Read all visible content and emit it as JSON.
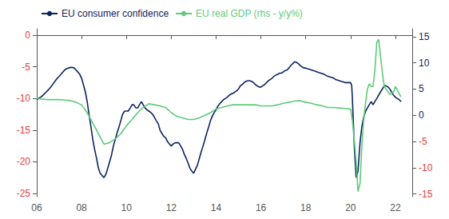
{
  "chart_data": {
    "type": "line",
    "xlim": [
      2006.0,
      2022.75
    ],
    "xticks": [
      {
        "value": 2006,
        "label": "06"
      },
      {
        "value": 2008,
        "label": "08"
      },
      {
        "value": 2010,
        "label": "10"
      },
      {
        "value": 2012,
        "label": "12"
      },
      {
        "value": 2014,
        "label": "14"
      },
      {
        "value": 2016,
        "label": "16"
      },
      {
        "value": 2018,
        "label": "18"
      },
      {
        "value": 2020,
        "label": "20"
      },
      {
        "value": 2022,
        "label": "22"
      }
    ],
    "ylim": [
      -25.5,
      1.0
    ],
    "yticks": [
      0,
      -5,
      -10,
      -15,
      -20,
      -25
    ],
    "y2lim": [
      -15.5,
      16.5
    ],
    "y2ticks": [
      15,
      10,
      5,
      0,
      -5,
      -10,
      -15
    ],
    "legend": "upper left",
    "grid": false,
    "series": [
      {
        "name": "EU consumer confidence",
        "color": "#0d2461",
        "x": [
          2006.0,
          2006.08,
          2006.17,
          2006.25,
          2006.33,
          2006.42,
          2006.5,
          2006.58,
          2006.67,
          2006.75,
          2006.83,
          2006.92,
          2007.0,
          2007.08,
          2007.17,
          2007.25,
          2007.33,
          2007.42,
          2007.5,
          2007.58,
          2007.67,
          2007.75,
          2007.83,
          2007.92,
          2008.0,
          2008.08,
          2008.17,
          2008.25,
          2008.33,
          2008.42,
          2008.5,
          2008.58,
          2008.67,
          2008.75,
          2008.83,
          2008.92,
          2009.0,
          2009.08,
          2009.17,
          2009.25,
          2009.33,
          2009.42,
          2009.5,
          2009.58,
          2009.67,
          2009.75,
          2009.83,
          2009.92,
          2010.0,
          2010.08,
          2010.17,
          2010.25,
          2010.33,
          2010.42,
          2010.5,
          2010.58,
          2010.67,
          2010.75,
          2010.83,
          2010.92,
          2011.0,
          2011.08,
          2011.17,
          2011.25,
          2011.33,
          2011.42,
          2011.5,
          2011.58,
          2011.67,
          2011.75,
          2011.83,
          2011.92,
          2012.0,
          2012.08,
          2012.17,
          2012.25,
          2012.33,
          2012.42,
          2012.5,
          2012.58,
          2012.67,
          2012.75,
          2012.83,
          2012.92,
          2013.0,
          2013.08,
          2013.17,
          2013.25,
          2013.33,
          2013.42,
          2013.5,
          2013.58,
          2013.67,
          2013.75,
          2013.83,
          2013.92,
          2014.0,
          2014.08,
          2014.17,
          2014.25,
          2014.33,
          2014.42,
          2014.5,
          2014.58,
          2014.67,
          2014.75,
          2014.83,
          2014.92,
          2015.0,
          2015.08,
          2015.17,
          2015.25,
          2015.33,
          2015.42,
          2015.5,
          2015.58,
          2015.67,
          2015.75,
          2015.83,
          2015.92,
          2016.0,
          2016.08,
          2016.17,
          2016.25,
          2016.33,
          2016.42,
          2016.5,
          2016.58,
          2016.67,
          2016.75,
          2016.83,
          2016.92,
          2017.0,
          2017.08,
          2017.17,
          2017.25,
          2017.33,
          2017.42,
          2017.5,
          2017.58,
          2017.67,
          2017.75,
          2017.83,
          2017.92,
          2018.0,
          2018.08,
          2018.17,
          2018.25,
          2018.33,
          2018.42,
          2018.5,
          2018.58,
          2018.67,
          2018.75,
          2018.83,
          2018.92,
          2019.0,
          2019.08,
          2019.17,
          2019.25,
          2019.33,
          2019.42,
          2019.5,
          2019.58,
          2019.67,
          2019.75,
          2019.83,
          2019.92,
          2020.0,
          2020.05,
          2020.08,
          2020.12,
          2020.17,
          2020.25,
          2020.33,
          2020.42,
          2020.5,
          2020.58,
          2020.67,
          2020.75,
          2020.83,
          2020.92,
          2021.0,
          2021.08,
          2021.17,
          2021.25,
          2021.33,
          2021.42,
          2021.5,
          2021.58,
          2021.67,
          2021.75,
          2021.83,
          2021.92,
          2022.0,
          2022.08,
          2022.17,
          2022.25
        ],
        "values": [
          -10.2,
          -10.0,
          -9.8,
          -9.6,
          -9.3,
          -9.0,
          -8.7,
          -8.4,
          -8.0,
          -7.6,
          -7.2,
          -6.8,
          -6.5,
          -6.2,
          -5.8,
          -5.5,
          -5.3,
          -5.2,
          -5.1,
          -5.1,
          -5.2,
          -5.5,
          -5.8,
          -6.2,
          -6.8,
          -7.8,
          -9.0,
          -10.5,
          -12.5,
          -14.5,
          -16.5,
          -18.0,
          -19.5,
          -21.0,
          -21.8,
          -22.2,
          -22.5,
          -22.0,
          -21.0,
          -20.0,
          -19.0,
          -17.5,
          -16.5,
          -15.5,
          -14.5,
          -13.5,
          -12.5,
          -12.0,
          -12.0,
          -12.0,
          -11.5,
          -11.0,
          -11.0,
          -11.5,
          -11.5,
          -11.0,
          -10.5,
          -11.0,
          -11.5,
          -11.8,
          -12.0,
          -12.2,
          -12.5,
          -13.0,
          -13.5,
          -14.0,
          -15.0,
          -15.5,
          -16.0,
          -16.2,
          -16.8,
          -17.2,
          -17.5,
          -17.2,
          -17.0,
          -17.0,
          -17.0,
          -17.5,
          -18.0,
          -18.8,
          -19.5,
          -20.2,
          -21.0,
          -21.5,
          -21.8,
          -21.2,
          -20.5,
          -19.5,
          -18.5,
          -17.5,
          -16.5,
          -15.5,
          -14.5,
          -13.5,
          -12.8,
          -12.2,
          -11.8,
          -11.2,
          -10.8,
          -10.5,
          -10.2,
          -10.0,
          -9.8,
          -9.5,
          -9.3,
          -9.2,
          -9.0,
          -8.8,
          -8.5,
          -8.0,
          -7.8,
          -7.5,
          -7.3,
          -7.2,
          -7.2,
          -7.3,
          -7.5,
          -7.8,
          -8.0,
          -8.2,
          -8.2,
          -8.0,
          -7.8,
          -7.5,
          -7.2,
          -7.0,
          -6.8,
          -6.5,
          -6.3,
          -6.2,
          -6.0,
          -6.0,
          -5.8,
          -5.6,
          -5.5,
          -5.2,
          -4.8,
          -4.5,
          -4.2,
          -4.3,
          -4.5,
          -4.8,
          -5.0,
          -5.2,
          -5.2,
          -5.3,
          -5.4,
          -5.5,
          -5.6,
          -5.7,
          -5.8,
          -5.9,
          -6.0,
          -6.1,
          -6.2,
          -6.4,
          -6.5,
          -6.6,
          -6.7,
          -6.8,
          -7.0,
          -7.1,
          -7.2,
          -7.3,
          -7.4,
          -7.5,
          -7.5,
          -7.5,
          -7.5,
          -8.0,
          -10.0,
          -13.5,
          -18.0,
          -22.5,
          -21.5,
          -17.0,
          -14.5,
          -13.0,
          -12.0,
          -11.5,
          -11.0,
          -10.5,
          -11.0,
          -10.5,
          -10.0,
          -9.5,
          -9.0,
          -8.5,
          -8.0,
          -8.0,
          -8.2,
          -8.5,
          -9.0,
          -9.5,
          -9.8,
          -10.0,
          -10.2,
          -10.5
        ]
      },
      {
        "name": "EU real GDP (rhs - y/y%)",
        "color": "#5ecb7a",
        "axis": "y2",
        "x": [
          2006.0,
          2006.25,
          2006.5,
          2006.75,
          2007.0,
          2007.25,
          2007.5,
          2007.75,
          2008.0,
          2008.25,
          2008.5,
          2008.75,
          2009.0,
          2009.25,
          2009.5,
          2009.75,
          2010.0,
          2010.25,
          2010.5,
          2010.75,
          2011.0,
          2011.25,
          2011.5,
          2011.75,
          2012.0,
          2012.25,
          2012.5,
          2012.75,
          2013.0,
          2013.25,
          2013.5,
          2013.75,
          2014.0,
          2014.25,
          2014.5,
          2014.75,
          2015.0,
          2015.25,
          2015.5,
          2015.75,
          2016.0,
          2016.25,
          2016.5,
          2016.75,
          2017.0,
          2017.25,
          2017.5,
          2017.75,
          2018.0,
          2018.25,
          2018.5,
          2018.75,
          2019.0,
          2019.25,
          2019.5,
          2019.75,
          2020.0,
          2020.08,
          2020.17,
          2020.25,
          2020.33,
          2020.42,
          2020.5,
          2020.58,
          2020.67,
          2020.75,
          2020.83,
          2020.92,
          2021.0,
          2021.08,
          2021.17,
          2021.25,
          2021.42,
          2021.5,
          2021.75,
          2021.92,
          2022.0,
          2022.25
        ],
        "values": [
          3.2,
          3.1,
          3.0,
          3.0,
          3.0,
          2.9,
          2.8,
          2.5,
          2.0,
          0.5,
          -1.5,
          -3.5,
          -5.5,
          -5.2,
          -4.5,
          -3.5,
          -2.0,
          -0.8,
          0.5,
          1.5,
          2.2,
          2.0,
          1.8,
          1.5,
          0.5,
          -0.2,
          -0.5,
          -0.8,
          -0.8,
          -0.5,
          0.0,
          0.5,
          1.2,
          1.5,
          1.8,
          2.0,
          2.0,
          2.0,
          2.0,
          2.0,
          1.8,
          1.8,
          1.8,
          2.0,
          2.3,
          2.5,
          2.7,
          2.8,
          2.5,
          2.3,
          2.0,
          1.8,
          1.5,
          1.5,
          1.4,
          1.3,
          1.2,
          -1.0,
          -5.0,
          -9.0,
          -14.5,
          -13.0,
          -6.0,
          -1.0,
          2.5,
          5.0,
          6.0,
          5.5,
          5.5,
          8.5,
          14.0,
          14.5,
          8.0,
          5.5,
          4.0,
          4.5,
          5.5,
          3.5
        ]
      }
    ]
  }
}
